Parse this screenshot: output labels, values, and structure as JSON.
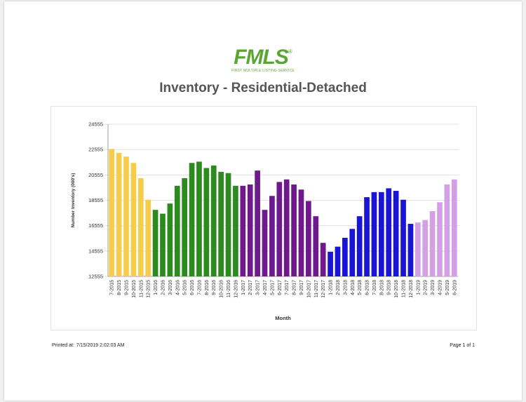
{
  "header": {
    "logo_text": "FMLS",
    "logo_registered": "®",
    "logo_subtitle": "FIRST MULTIPLE LISTING SERVICE",
    "title": "Inventory - Residential-Detached"
  },
  "footer": {
    "printed_label": "Printed at:",
    "printed_value": "7/15/2019 2:02:03 AM",
    "page_label": "Page 1 of 1"
  },
  "chart_data": {
    "type": "bar",
    "title": "Inventory - Residential-Detached",
    "xlabel": "Month",
    "ylabel": "Number Inventory (000's)",
    "ylim": [
      12555,
      24555
    ],
    "yticks": [
      12555,
      14555,
      16555,
      18555,
      20555,
      22555,
      24555
    ],
    "grid": true,
    "legend": "none",
    "year_colors": {
      "2015": "#f5cd4b",
      "2016": "#2d8a1f",
      "2017": "#6f1a8c",
      "2018": "#1a14d6",
      "2019": "#d3a0e6"
    },
    "categories": [
      "7-2015",
      "8-2015",
      "9-2015",
      "10-2015",
      "11-2015",
      "12-2015",
      "1-2016",
      "2-2016",
      "3-2016",
      "4-2016",
      "5-2016",
      "6-2016",
      "7-2016",
      "8-2016",
      "9-2016",
      "10-2016",
      "11-2016",
      "12-2016",
      "1-2017",
      "2-2017",
      "3-2017",
      "4-2017",
      "5-2017",
      "6-2017",
      "7-2017",
      "8-2017",
      "9-2017",
      "10-2017",
      "11-2017",
      "12-2017",
      "1-2018",
      "2-2018",
      "3-2018",
      "4-2018",
      "5-2018",
      "6-2018",
      "7-2018",
      "8-2018",
      "9-2018",
      "10-2018",
      "11-2018",
      "12-2018",
      "1-2019",
      "2-2019",
      "3-2019",
      "4-2019",
      "5-2019",
      "6-2019"
    ],
    "values": [
      22600,
      22300,
      22000,
      21500,
      20300,
      18600,
      17800,
      17500,
      18300,
      19700,
      20300,
      21500,
      21600,
      21100,
      21300,
      20800,
      20700,
      19700,
      19700,
      19800,
      20900,
      17800,
      18900,
      20000,
      20200,
      19800,
      19400,
      18500,
      17300,
      15200,
      14500,
      14900,
      15600,
      16300,
      17300,
      18800,
      19200,
      19200,
      19500,
      19300,
      18600,
      16700,
      16800,
      17000,
      17700,
      18400,
      19800,
      20200
    ]
  }
}
